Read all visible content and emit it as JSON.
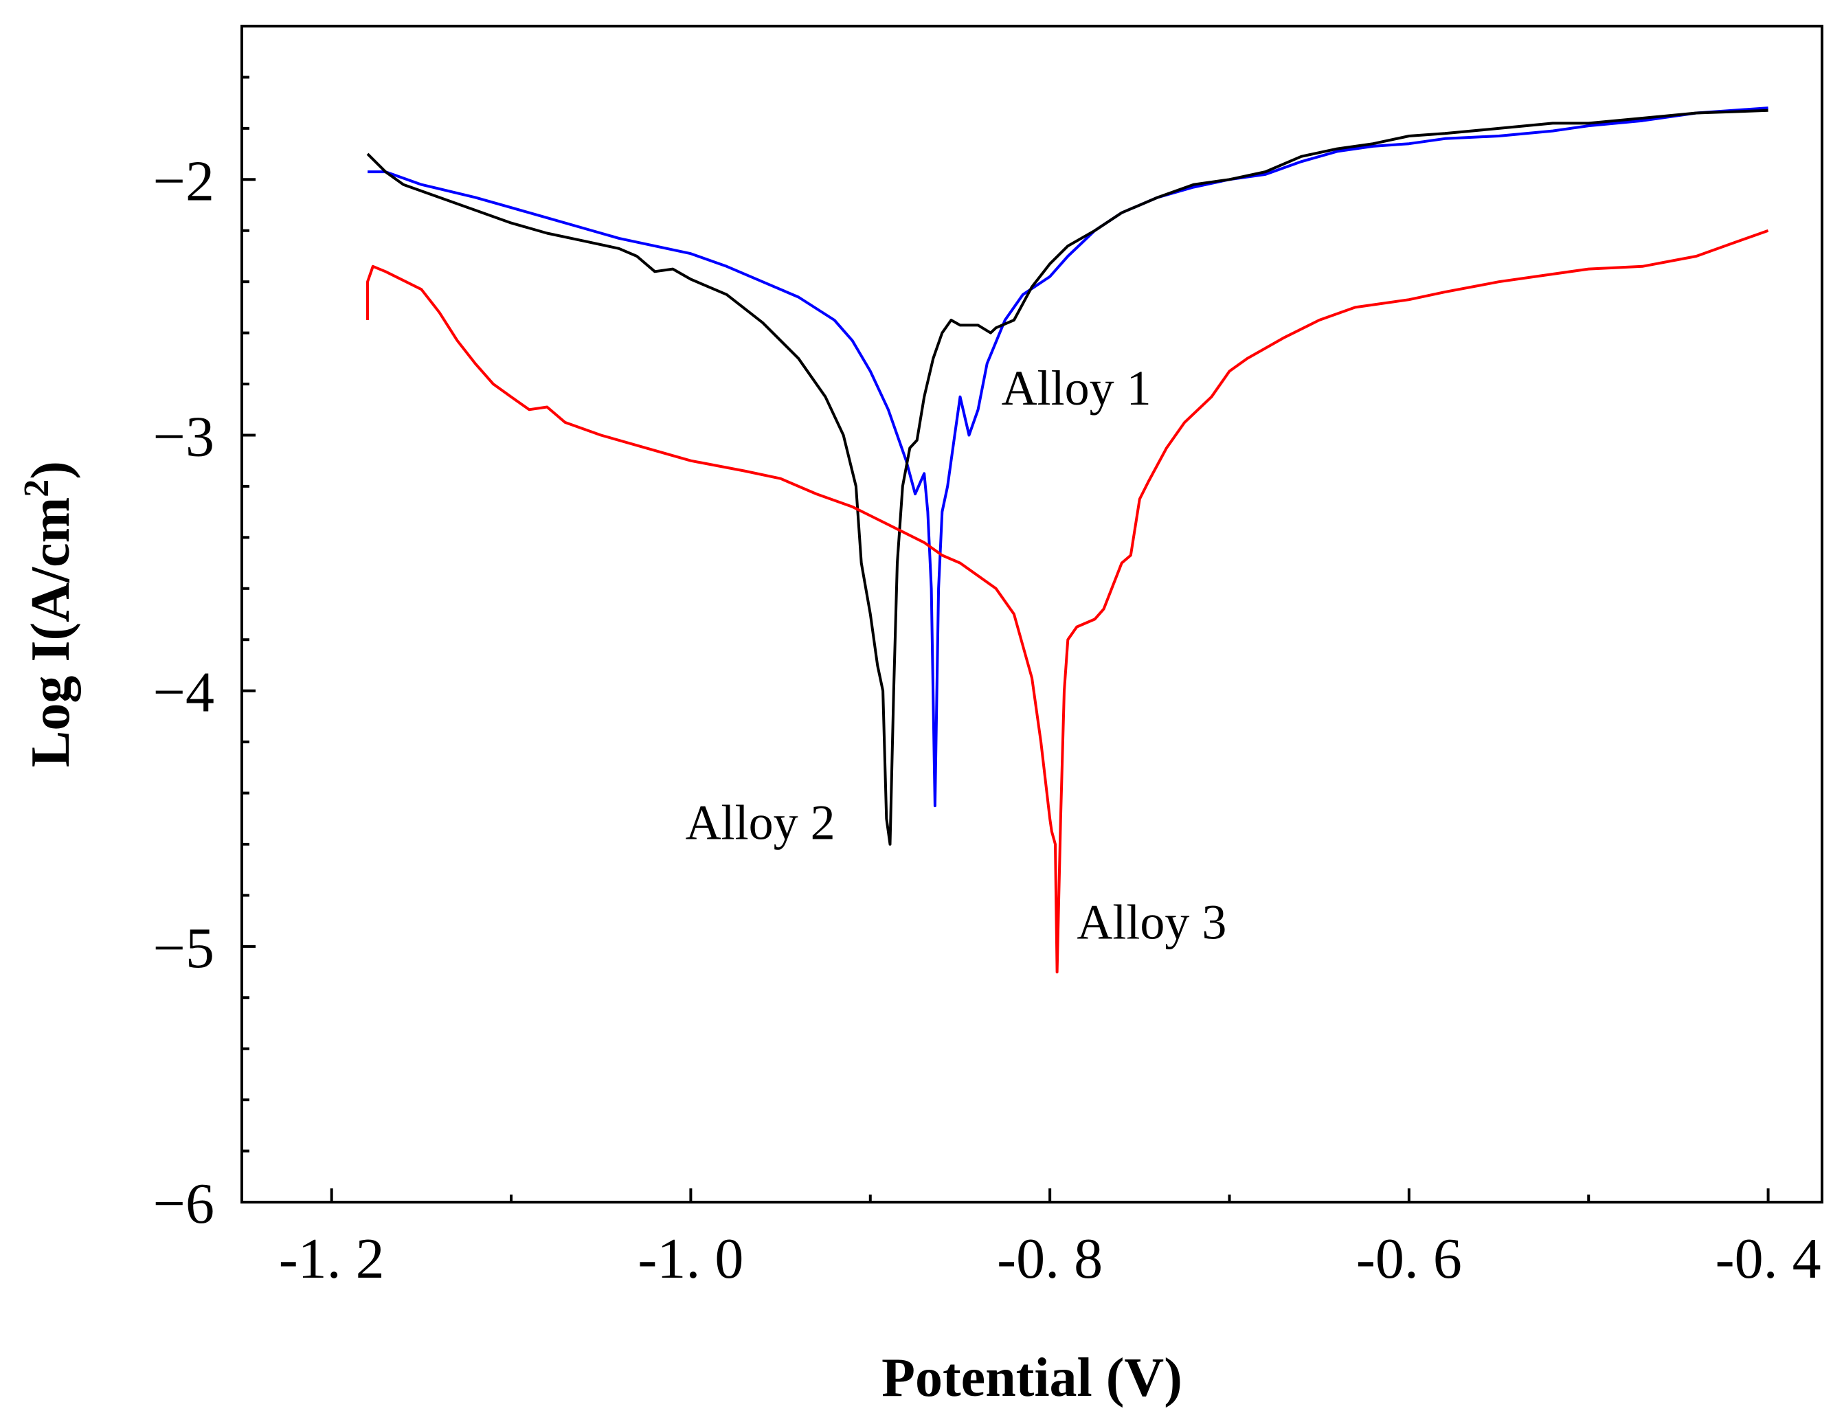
{
  "chart_data": {
    "type": "line",
    "title": "",
    "xlabel": "Potential (V)",
    "ylabel": "Log I(A/cm",
    "ylabel_superscript": "2",
    "ylabel_close": ")",
    "xlim": [
      -1.25,
      -0.37
    ],
    "ylim": [
      -6,
      -1.4
    ],
    "xticks": [
      -1.2,
      -1.0,
      -0.8,
      -0.6,
      -0.4
    ],
    "xtick_labels": [
      "-1. 2",
      "-1. 0",
      "-0. 8",
      "-0. 6",
      "-0. 4"
    ],
    "xminor": [
      -1.1,
      -0.9,
      -0.7,
      -0.5
    ],
    "yticks": [
      -6,
      -5,
      -4,
      -3,
      -2
    ],
    "ytick_labels": [
      "−6",
      "−5",
      "−4",
      "−3",
      "−2"
    ],
    "yminor_step": 0.2,
    "grid": false,
    "legend": "none",
    "series": [
      {
        "name": "Alloy 1",
        "color": "#0000ff",
        "points": [
          [
            -1.18,
            -1.97
          ],
          [
            -1.17,
            -1.97
          ],
          [
            -1.15,
            -2.02
          ],
          [
            -1.12,
            -2.07
          ],
          [
            -1.1,
            -2.11
          ],
          [
            -1.08,
            -2.15
          ],
          [
            -1.06,
            -2.19
          ],
          [
            -1.04,
            -2.23
          ],
          [
            -1.02,
            -2.26
          ],
          [
            -1.0,
            -2.29
          ],
          [
            -0.98,
            -2.34
          ],
          [
            -0.96,
            -2.4
          ],
          [
            -0.94,
            -2.46
          ],
          [
            -0.92,
            -2.55
          ],
          [
            -0.91,
            -2.63
          ],
          [
            -0.9,
            -2.75
          ],
          [
            -0.89,
            -2.9
          ],
          [
            -0.88,
            -3.1
          ],
          [
            -0.875,
            -3.23
          ],
          [
            -0.87,
            -3.15
          ],
          [
            -0.868,
            -3.3
          ],
          [
            -0.866,
            -3.6
          ],
          [
            -0.864,
            -4.45
          ],
          [
            -0.862,
            -3.6
          ],
          [
            -0.86,
            -3.3
          ],
          [
            -0.857,
            -3.2
          ],
          [
            -0.853,
            -3.0
          ],
          [
            -0.85,
            -2.85
          ],
          [
            -0.845,
            -3.0
          ],
          [
            -0.84,
            -2.9
          ],
          [
            -0.835,
            -2.72
          ],
          [
            -0.825,
            -2.55
          ],
          [
            -0.815,
            -2.45
          ],
          [
            -0.8,
            -2.38
          ],
          [
            -0.79,
            -2.3
          ],
          [
            -0.775,
            -2.2
          ],
          [
            -0.76,
            -2.13
          ],
          [
            -0.74,
            -2.07
          ],
          [
            -0.72,
            -2.03
          ],
          [
            -0.7,
            -2.0
          ],
          [
            -0.68,
            -1.98
          ],
          [
            -0.66,
            -1.93
          ],
          [
            -0.64,
            -1.89
          ],
          [
            -0.62,
            -1.87
          ],
          [
            -0.6,
            -1.86
          ],
          [
            -0.58,
            -1.84
          ],
          [
            -0.55,
            -1.83
          ],
          [
            -0.52,
            -1.81
          ],
          [
            -0.5,
            -1.79
          ],
          [
            -0.47,
            -1.77
          ],
          [
            -0.44,
            -1.74
          ],
          [
            -0.4,
            -1.72
          ]
        ]
      },
      {
        "name": "Alloy 2",
        "color": "#000000",
        "points": [
          [
            -1.18,
            -1.9
          ],
          [
            -1.17,
            -1.97
          ],
          [
            -1.16,
            -2.02
          ],
          [
            -1.14,
            -2.07
          ],
          [
            -1.12,
            -2.12
          ],
          [
            -1.1,
            -2.17
          ],
          [
            -1.08,
            -2.21
          ],
          [
            -1.06,
            -2.24
          ],
          [
            -1.04,
            -2.27
          ],
          [
            -1.03,
            -2.3
          ],
          [
            -1.02,
            -2.36
          ],
          [
            -1.01,
            -2.35
          ],
          [
            -1.0,
            -2.39
          ],
          [
            -0.98,
            -2.45
          ],
          [
            -0.96,
            -2.56
          ],
          [
            -0.94,
            -2.7
          ],
          [
            -0.925,
            -2.85
          ],
          [
            -0.915,
            -3.0
          ],
          [
            -0.908,
            -3.2
          ],
          [
            -0.905,
            -3.5
          ],
          [
            -0.9,
            -3.7
          ],
          [
            -0.896,
            -3.9
          ],
          [
            -0.893,
            -4.0
          ],
          [
            -0.891,
            -4.5
          ],
          [
            -0.889,
            -4.6
          ],
          [
            -0.887,
            -4.0
          ],
          [
            -0.885,
            -3.5
          ],
          [
            -0.882,
            -3.2
          ],
          [
            -0.878,
            -3.05
          ],
          [
            -0.874,
            -3.02
          ],
          [
            -0.87,
            -2.85
          ],
          [
            -0.865,
            -2.7
          ],
          [
            -0.86,
            -2.6
          ],
          [
            -0.855,
            -2.55
          ],
          [
            -0.85,
            -2.57
          ],
          [
            -0.84,
            -2.57
          ],
          [
            -0.833,
            -2.6
          ],
          [
            -0.83,
            -2.58
          ],
          [
            -0.82,
            -2.55
          ],
          [
            -0.81,
            -2.42
          ],
          [
            -0.8,
            -2.33
          ],
          [
            -0.79,
            -2.26
          ],
          [
            -0.775,
            -2.2
          ],
          [
            -0.76,
            -2.13
          ],
          [
            -0.74,
            -2.07
          ],
          [
            -0.72,
            -2.02
          ],
          [
            -0.7,
            -2.0
          ],
          [
            -0.68,
            -1.97
          ],
          [
            -0.66,
            -1.91
          ],
          [
            -0.64,
            -1.88
          ],
          [
            -0.62,
            -1.86
          ],
          [
            -0.6,
            -1.83
          ],
          [
            -0.58,
            -1.82
          ],
          [
            -0.55,
            -1.8
          ],
          [
            -0.52,
            -1.78
          ],
          [
            -0.5,
            -1.78
          ],
          [
            -0.47,
            -1.76
          ],
          [
            -0.44,
            -1.74
          ],
          [
            -0.4,
            -1.73
          ]
        ]
      },
      {
        "name": "Alloy 3",
        "color": "#ff0000",
        "points": [
          [
            -1.18,
            -2.55
          ],
          [
            -1.18,
            -2.4
          ],
          [
            -1.177,
            -2.34
          ],
          [
            -1.17,
            -2.36
          ],
          [
            -1.15,
            -2.43
          ],
          [
            -1.14,
            -2.52
          ],
          [
            -1.13,
            -2.63
          ],
          [
            -1.12,
            -2.72
          ],
          [
            -1.11,
            -2.8
          ],
          [
            -1.1,
            -2.85
          ],
          [
            -1.09,
            -2.9
          ],
          [
            -1.08,
            -2.89
          ],
          [
            -1.07,
            -2.95
          ],
          [
            -1.05,
            -3.0
          ],
          [
            -1.02,
            -3.06
          ],
          [
            -1.0,
            -3.1
          ],
          [
            -0.97,
            -3.14
          ],
          [
            -0.95,
            -3.17
          ],
          [
            -0.93,
            -3.23
          ],
          [
            -0.91,
            -3.28
          ],
          [
            -0.89,
            -3.35
          ],
          [
            -0.87,
            -3.42
          ],
          [
            -0.86,
            -3.47
          ],
          [
            -0.85,
            -3.5
          ],
          [
            -0.83,
            -3.6
          ],
          [
            -0.82,
            -3.7
          ],
          [
            -0.81,
            -3.95
          ],
          [
            -0.805,
            -4.2
          ],
          [
            -0.8,
            -4.5
          ],
          [
            -0.799,
            -4.55
          ],
          [
            -0.797,
            -4.6
          ],
          [
            -0.796,
            -5.1
          ],
          [
            -0.794,
            -4.5
          ],
          [
            -0.792,
            -4.0
          ],
          [
            -0.79,
            -3.8
          ],
          [
            -0.785,
            -3.75
          ],
          [
            -0.775,
            -3.72
          ],
          [
            -0.77,
            -3.68
          ],
          [
            -0.76,
            -3.5
          ],
          [
            -0.755,
            -3.47
          ],
          [
            -0.75,
            -3.25
          ],
          [
            -0.745,
            -3.18
          ],
          [
            -0.735,
            -3.05
          ],
          [
            -0.725,
            -2.95
          ],
          [
            -0.71,
            -2.85
          ],
          [
            -0.7,
            -2.75
          ],
          [
            -0.69,
            -2.7
          ],
          [
            -0.67,
            -2.62
          ],
          [
            -0.65,
            -2.55
          ],
          [
            -0.63,
            -2.5
          ],
          [
            -0.6,
            -2.47
          ],
          [
            -0.58,
            -2.44
          ],
          [
            -0.55,
            -2.4
          ],
          [
            -0.52,
            -2.37
          ],
          [
            -0.5,
            -2.35
          ],
          [
            -0.47,
            -2.34
          ],
          [
            -0.44,
            -2.3
          ],
          [
            -0.42,
            -2.25
          ],
          [
            -0.4,
            -2.2
          ]
        ]
      }
    ],
    "annotations": [
      {
        "text": "Alloy 1",
        "x": -0.827,
        "y": -2.88
      },
      {
        "text": "Alloy 2",
        "x": -1.003,
        "y": -4.58
      },
      {
        "text": "Alloy 3",
        "x": -0.785,
        "y": -4.97
      }
    ]
  }
}
